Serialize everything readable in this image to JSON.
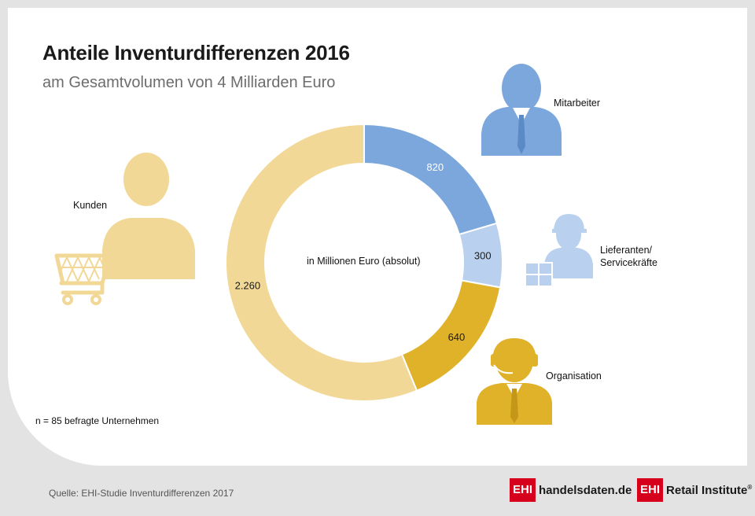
{
  "title": "Anteile Inventurdifferenzen 2016",
  "subtitle": "am Gesamtvolumen von 4 Milliarden Euro",
  "chart_data": {
    "type": "pie",
    "style": "donut",
    "center_label": "in Millionen Euro (absolut)",
    "slices": [
      {
        "name": "Mitarbeiter",
        "value": 820,
        "value_label": "820",
        "color": "#7ba7dc"
      },
      {
        "name": "Lieferanten/ Servicekräfte",
        "value": 300,
        "value_label": "300",
        "color": "#b9d1ee"
      },
      {
        "name": "Organisation",
        "value": 640,
        "value_label": "640",
        "color": "#e0b22a"
      },
      {
        "name": "Kunden",
        "value": 2260,
        "value_label": "2.260",
        "color": "#f2d896"
      }
    ]
  },
  "labels": {
    "mitarbeiter": "Mitarbeiter",
    "lieferanten_line1": "Lieferanten/",
    "lieferanten_line2": "Servicekräfte",
    "organisation": "Organisation",
    "kunden": "Kunden"
  },
  "note": "n = 85 befragte Unternehmen",
  "source": "Quelle: EHI-Studie Inventurdifferenzen 2017",
  "logos": {
    "left_box": "EHI",
    "left_text": "handelsdaten.de",
    "right_box": "EHI",
    "right_text": "Retail Institute",
    "right_mark": "®"
  },
  "icons": [
    "person-tie-icon",
    "delivery-person-icon",
    "headset-person-icon",
    "shopper-cart-icon"
  ]
}
